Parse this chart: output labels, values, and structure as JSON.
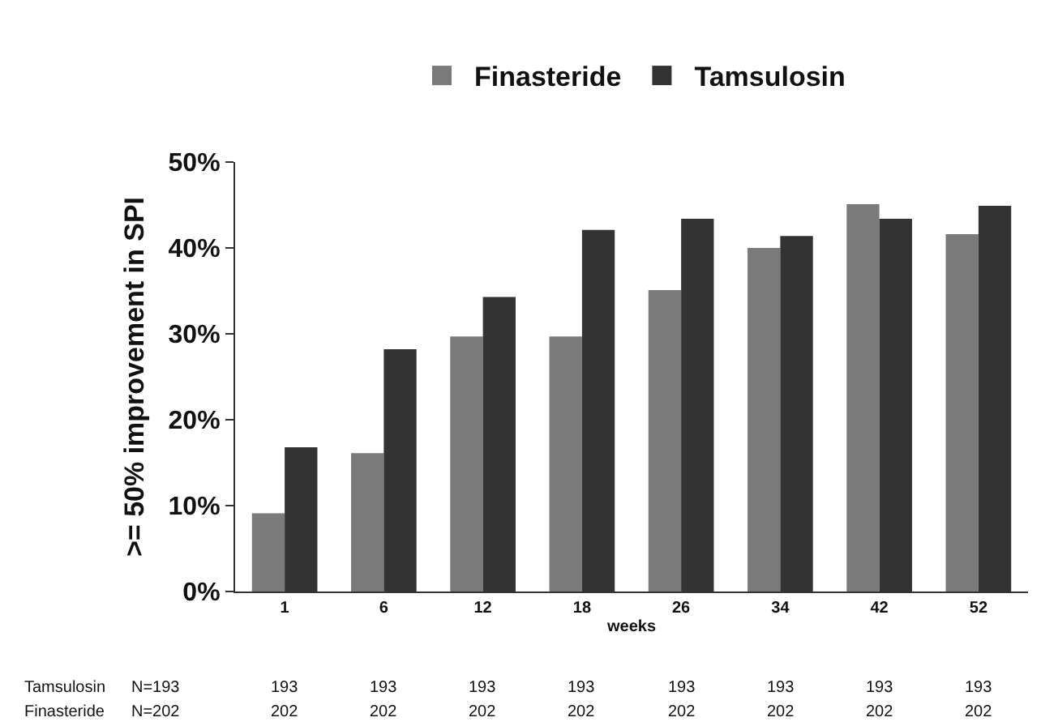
{
  "chart_data": {
    "type": "bar",
    "xlabel": "weeks",
    "ylabel": ">= 50% improvement in SPI",
    "categories": [
      "1",
      "6",
      "12",
      "18",
      "26",
      "34",
      "42",
      "52"
    ],
    "series": [
      {
        "name": "Finasteride",
        "color": "#7a7a7a",
        "values": [
          9.1,
          16.1,
          29.7,
          29.7,
          35.1,
          40.0,
          45.1,
          41.6
        ]
      },
      {
        "name": "Tamsulosin",
        "color": "#333333",
        "values": [
          16.8,
          28.2,
          34.3,
          42.1,
          43.4,
          41.4,
          43.4,
          44.9
        ]
      }
    ],
    "ylim": [
      0,
      50
    ],
    "yticks": [
      {
        "value": 0,
        "label": "0%"
      },
      {
        "value": 10,
        "label": "10%"
      },
      {
        "value": 20,
        "label": "20%"
      },
      {
        "value": 30,
        "label": "30%"
      },
      {
        "value": 40,
        "label": "40%"
      },
      {
        "value": 50,
        "label": "50%"
      }
    ],
    "legend": "top",
    "annotations": [
      "Tamsulosin",
      "N=193",
      "193",
      "193",
      "193",
      "193",
      "193",
      "193",
      "193",
      "193",
      "Finasteride",
      "N=202",
      "202",
      "202",
      "202",
      "202",
      "202",
      "202",
      "202",
      "202"
    ]
  }
}
